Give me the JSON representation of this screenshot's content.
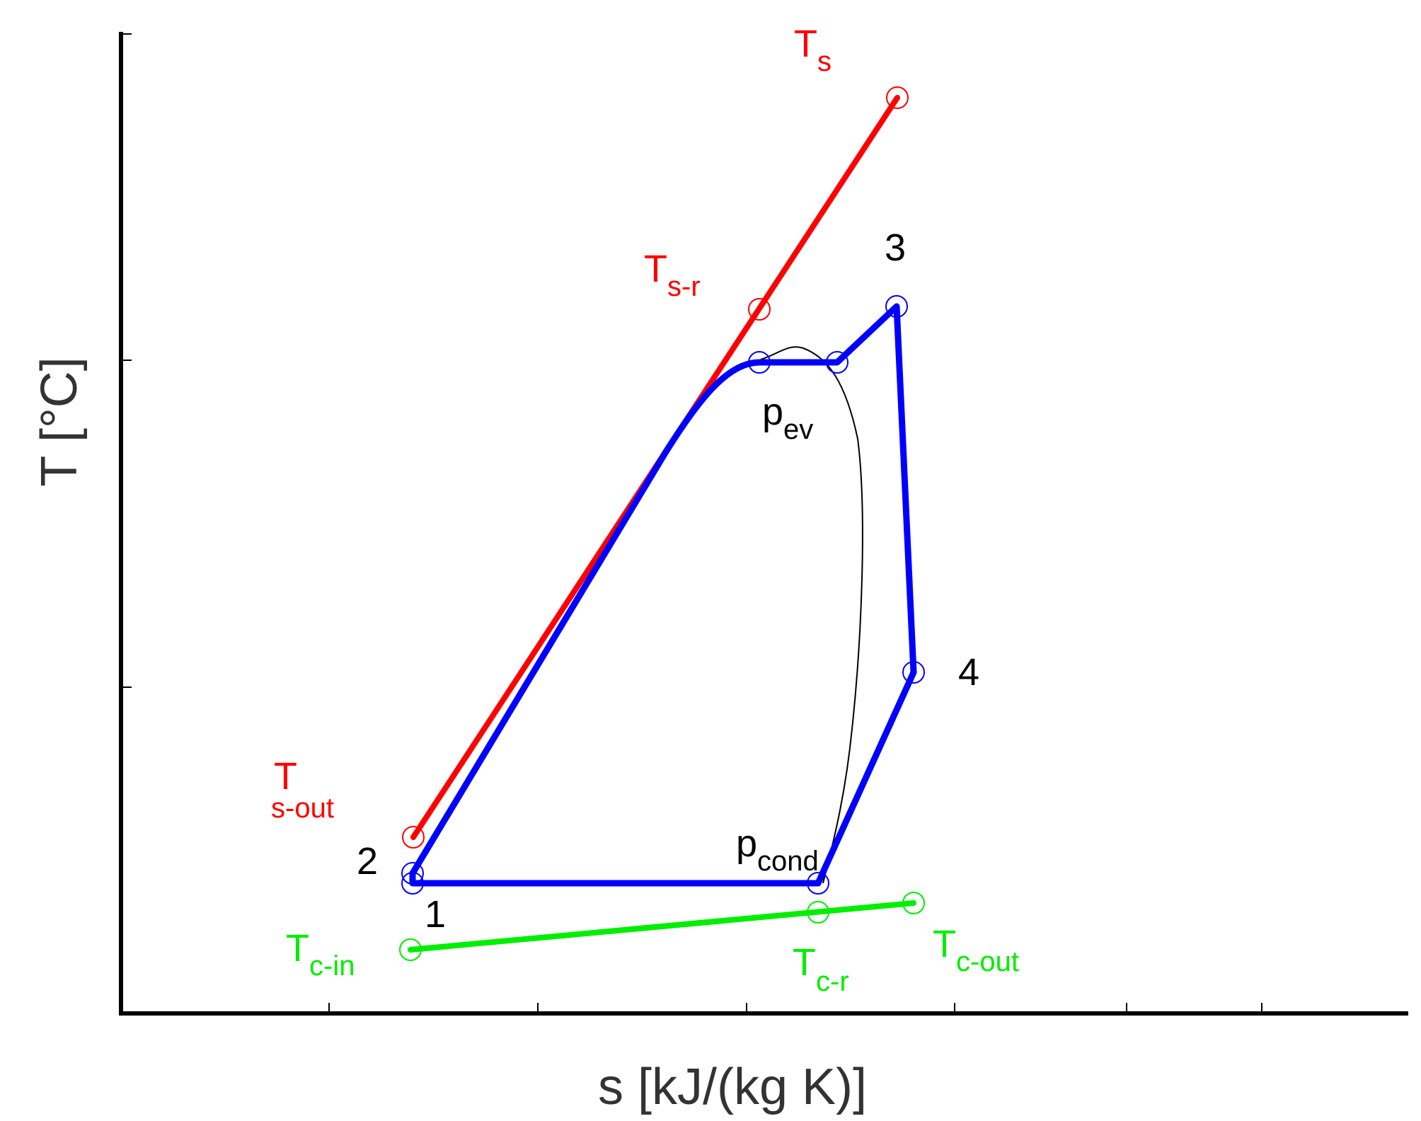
{
  "axes": {
    "x_label": "s [kJ/(kg K)]",
    "y_label": "T [°C]"
  },
  "colors": {
    "axis": "#000000",
    "cycle": "#0000ff",
    "source": "#ff0000",
    "coolant": "#00ff00",
    "saturation_dome": "#000000",
    "label_black": "#000000"
  },
  "labels": {
    "T_s": {
      "main": "T",
      "sub": "s"
    },
    "T_s_r": {
      "main": "T",
      "sub": "s-r"
    },
    "T_s_out": {
      "main": "T",
      "sub": "s-out"
    },
    "T_c_in": {
      "main": "T",
      "sub": "c-in"
    },
    "T_c_r": {
      "main": "T",
      "sub": "c-r"
    },
    "T_c_out": {
      "main": "T",
      "sub": "c-out"
    },
    "p_ev": {
      "main": "p",
      "sub": "ev"
    },
    "p_cond": {
      "main": "p",
      "sub": "cond"
    },
    "point_1": "1",
    "point_2": "2",
    "point_3": "3",
    "point_4": "4"
  }
}
